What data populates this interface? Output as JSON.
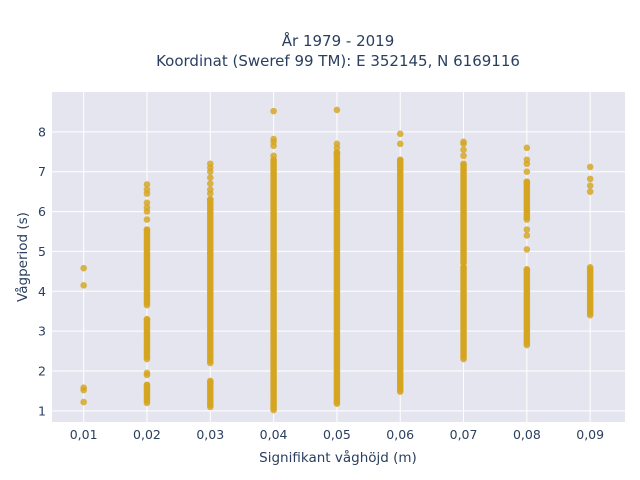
{
  "chart_data": {
    "type": "scatter",
    "title": "År 1979 - 2019",
    "subtitle": "Koordinat (Sweref 99 TM): E 352145, N 6169116",
    "xlabel": "Signifikant våghöjd (m)",
    "ylabel": "Vågperiod (s)",
    "x_ticks": [
      "0,01",
      "0,02",
      "0,03",
      "0,04",
      "0,05",
      "0,06",
      "0,07",
      "0,08",
      "0,09"
    ],
    "y_ticks": [
      "1",
      "2",
      "3",
      "4",
      "5",
      "6",
      "7",
      "8"
    ],
    "xlim": [
      0.005,
      0.0955
    ],
    "ylim": [
      0.72,
      9.0
    ],
    "grid": true,
    "marker_color": "#d4a520",
    "plot_bg": "#e5e5ef",
    "columns": [
      {
        "x": 0.01,
        "ranges": [],
        "points": [
          4.58,
          4.15,
          1.58,
          1.52,
          1.22
        ]
      },
      {
        "x": 0.02,
        "ranges": [
          [
            3.65,
            5.55
          ],
          [
            2.3,
            3.3
          ],
          [
            1.2,
            1.65
          ]
        ],
        "points": [
          6.68,
          6.55,
          6.45,
          6.22,
          6.1,
          6.0,
          5.8,
          1.95,
          1.9
        ]
      },
      {
        "x": 0.03,
        "ranges": [
          [
            2.2,
            6.3
          ],
          [
            1.1,
            1.75
          ]
        ],
        "points": [
          7.2,
          7.1,
          7.0,
          6.85,
          6.7,
          6.55,
          6.45,
          6.3
        ]
      },
      {
        "x": 0.04,
        "ranges": [
          [
            1.02,
            7.3
          ]
        ],
        "points": [
          8.52,
          7.82,
          7.75,
          7.65,
          7.4
        ]
      },
      {
        "x": 0.05,
        "ranges": [
          [
            1.18,
            7.48
          ]
        ],
        "points": [
          8.55,
          7.7,
          7.6
        ]
      },
      {
        "x": 0.06,
        "ranges": [
          [
            1.48,
            7.3
          ]
        ],
        "points": [
          7.95,
          7.7
        ]
      },
      {
        "x": 0.07,
        "ranges": [
          [
            2.3,
            4.6
          ],
          [
            4.7,
            7.2
          ]
        ],
        "points": [
          7.75,
          7.7,
          7.55,
          7.4
        ]
      },
      {
        "x": 0.08,
        "ranges": [
          [
            2.65,
            4.55
          ],
          [
            5.8,
            6.75
          ]
        ],
        "points": [
          7.6,
          7.3,
          7.2,
          7.0,
          5.55,
          5.4,
          5.05
        ]
      },
      {
        "x": 0.09,
        "ranges": [
          [
            3.4,
            4.6
          ]
        ],
        "points": [
          7.12,
          6.82,
          6.65,
          6.5
        ]
      }
    ]
  }
}
